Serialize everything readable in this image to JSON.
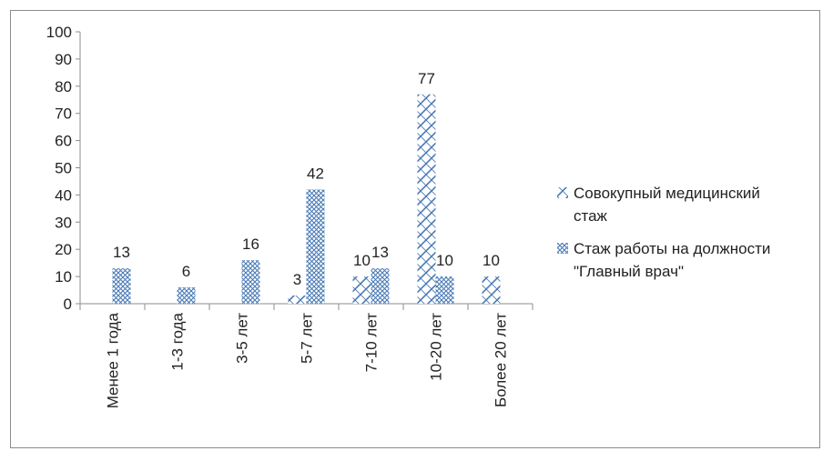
{
  "chart_data": {
    "type": "bar",
    "categories": [
      "Менее 1 года",
      "1-3 года",
      "3-5 лет",
      "5-7 лет",
      "7-10 лет",
      "10-20 лет",
      "Более 20 лет"
    ],
    "series": [
      {
        "name": "Совокупный медицинский стаж",
        "legend_lines": [
          "Совокупный медицинский",
          "стаж"
        ],
        "values": [
          0,
          0,
          0,
          3,
          10,
          77,
          10
        ],
        "shown_labels": [
          "",
          "",
          "",
          "3",
          "10",
          "77",
          "10"
        ],
        "pattern": "diagonal-cross"
      },
      {
        "name": "Стаж работы на должности \"Главный врач\"",
        "legend_lines": [
          "Стаж работы на должности",
          "\"Главный врач\""
        ],
        "values": [
          13,
          6,
          16,
          42,
          13,
          10,
          0
        ],
        "shown_labels": [
          "13",
          "6",
          "16",
          "42",
          "13",
          "10",
          ""
        ],
        "pattern": "crosshatch"
      }
    ],
    "ylim": [
      0,
      100
    ],
    "yticks": [
      0,
      10,
      20,
      30,
      40,
      50,
      60,
      70,
      80,
      90,
      100
    ],
    "grid": false,
    "legend_position": "right",
    "bar_color": "#4a7ab5"
  }
}
